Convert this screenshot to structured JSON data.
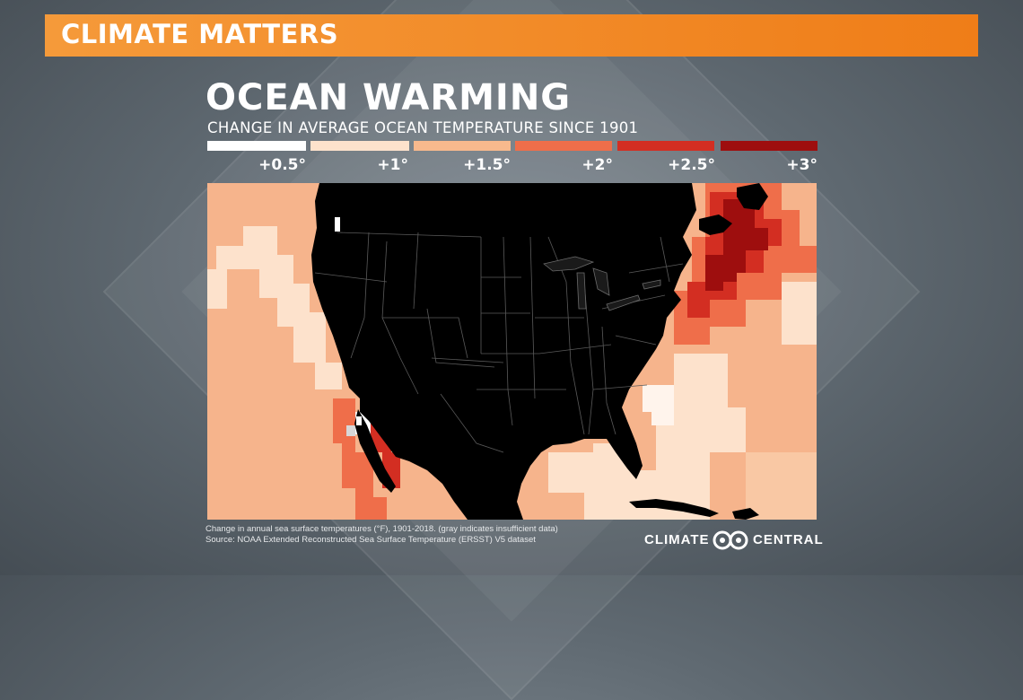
{
  "banner": {
    "label": "CLIMATE MATTERS",
    "color": "#f08a2a"
  },
  "title": "OCEAN WARMING",
  "subtitle": "CHANGE IN AVERAGE OCEAN TEMPERATURE SINCE 1901",
  "legend": {
    "items": [
      {
        "label": "+0.5°",
        "color": "#ffffff"
      },
      {
        "label": "+1°",
        "color": "#fde2cc"
      },
      {
        "label": "+1.5°",
        "color": "#f8b98d"
      },
      {
        "label": "+2°",
        "color": "#ef6e4a"
      },
      {
        "label": "+2.5°",
        "color": "#d32e22"
      },
      {
        "label": "+3°",
        "color": "#9e0e0e"
      }
    ]
  },
  "map": {
    "land_color": "#000000",
    "ocean_default_color": "#f6b48c",
    "region": "Contiguous United States and surrounding coastal waters"
  },
  "footnote": {
    "line1": "Change in annual sea surface temperatures (°F), 1901-2018. (gray indicates insufficient data)",
    "line2": "Source: NOAA Extended Reconstructed Sea Surface Temperature (ERSST) V5 dataset"
  },
  "brand": {
    "left": "CLIMATE",
    "right": "CENTRAL"
  }
}
